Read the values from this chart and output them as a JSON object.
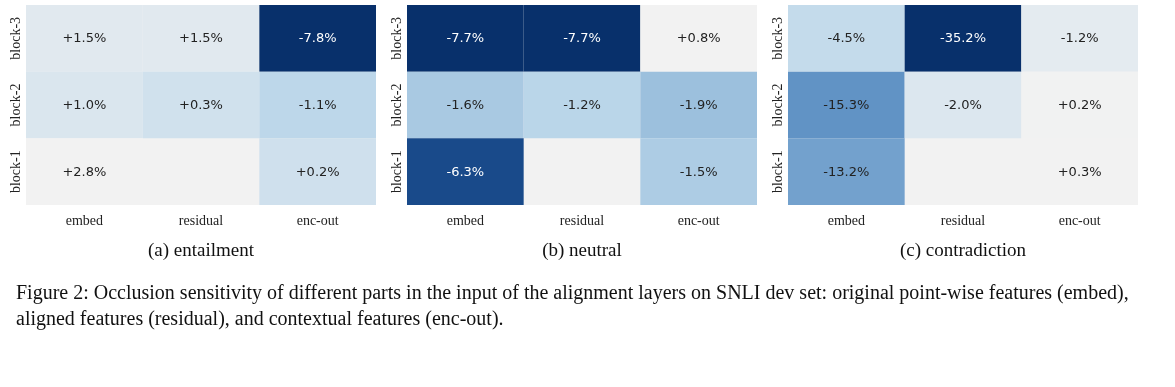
{
  "chart_data": [
    {
      "type": "heatmap",
      "title": "(a) entailment",
      "categories": [
        "embed",
        "residual",
        "enc-out"
      ],
      "y_categories": [
        "block-3",
        "block-2",
        "block-1"
      ],
      "cells": [
        [
          1.5,
          1.5,
          -7.8
        ],
        [
          1.0,
          0.3,
          -1.1
        ],
        [
          2.8,
          null,
          0.2
        ]
      ],
      "cell_labels": [
        [
          "+1.5%",
          "+1.5%",
          "-7.8%"
        ],
        [
          "+1.0%",
          "+0.3%",
          "-1.1%"
        ],
        [
          "+2.8%",
          null,
          "+0.2%"
        ]
      ]
    },
    {
      "type": "heatmap",
      "title": "(b) neutral",
      "categories": [
        "embed",
        "residual",
        "enc-out"
      ],
      "y_categories": [
        "block-3",
        "block-2",
        "block-1"
      ],
      "cells": [
        [
          -7.7,
          -7.7,
          0.8
        ],
        [
          -1.6,
          -1.2,
          -1.9
        ],
        [
          -6.3,
          null,
          -1.5
        ]
      ],
      "cell_labels": [
        [
          "-7.7%",
          "-7.7%",
          "+0.8%"
        ],
        [
          "-1.6%",
          "-1.2%",
          "-1.9%"
        ],
        [
          "-6.3%",
          null,
          "-1.5%"
        ]
      ]
    },
    {
      "type": "heatmap",
      "title": "(c) contradiction",
      "categories": [
        "embed",
        "residual",
        "enc-out"
      ],
      "y_categories": [
        "block-3",
        "block-2",
        "block-1"
      ],
      "cells": [
        [
          -4.5,
          -35.2,
          -1.2
        ],
        [
          -15.3,
          -2.0,
          0.2
        ],
        [
          -13.2,
          null,
          0.3
        ]
      ],
      "cell_labels": [
        [
          "-4.5%",
          "-35.2%",
          "-1.2%"
        ],
        [
          "-15.3%",
          "-2.0%",
          "+0.2%"
        ],
        [
          "-13.2%",
          null,
          "+0.3%"
        ]
      ],
      "annotations": [
        "Figure 2: Occlusion sensitivity of different parts in the input of the alignment layers on SNLI dev set: original point-wise features (embed), aligned features (residual), and contextual features (enc-out)."
      ]
    }
  ]
}
